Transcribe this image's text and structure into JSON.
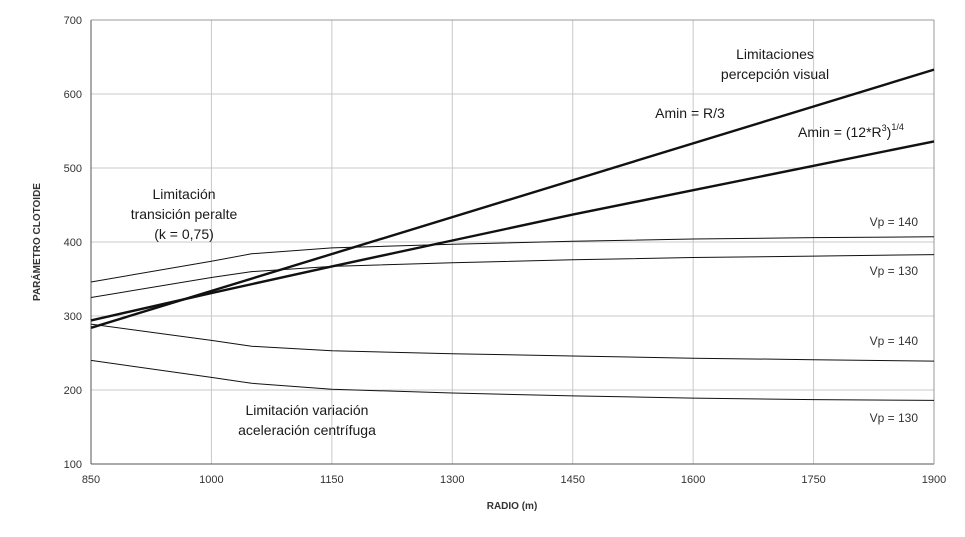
{
  "chart_data": {
    "type": "line",
    "xlabel": "RADIO (m)",
    "ylabel": "PARÁMETRO CLOTOIDE",
    "xlim": [
      850,
      1900
    ],
    "ylim": [
      100,
      700
    ],
    "xticks": [
      850,
      1000,
      1150,
      1300,
      1450,
      1600,
      1750,
      1900
    ],
    "yticks": [
      100,
      200,
      300,
      400,
      500,
      600,
      700
    ],
    "grid": true,
    "series": [
      {
        "name": "Amin = R/3",
        "stroke": "bold",
        "x": [
          850,
          1900
        ],
        "y": [
          284,
          633
        ]
      },
      {
        "name": "Amin = (12*R³)^1/4",
        "stroke": "bold",
        "x": [
          850,
          1000,
          1150,
          1300,
          1450,
          1600,
          1750,
          1900
        ],
        "y": [
          294,
          331,
          367,
          402,
          437,
          470,
          503,
          536
        ]
      },
      {
        "name": "Vp = 140",
        "stroke": "thin",
        "x": [
          850,
          1000,
          1050,
          1150,
          1300,
          1450,
          1600,
          1750,
          1900
        ],
        "y": [
          346,
          374,
          384,
          392,
          397,
          401,
          404,
          406,
          407
        ]
      },
      {
        "name": "Vp = 130",
        "stroke": "thin",
        "x": [
          850,
          1000,
          1050,
          1150,
          1300,
          1450,
          1600,
          1750,
          1900
        ],
        "y": [
          325,
          352,
          360,
          367,
          372,
          376,
          379,
          381,
          383
        ]
      },
      {
        "name": "Vp = 140",
        "stroke": "thin",
        "x": [
          850,
          1000,
          1050,
          1150,
          1300,
          1450,
          1600,
          1750,
          1900
        ],
        "y": [
          289,
          267,
          259,
          253,
          249,
          246,
          243,
          241,
          239
        ]
      },
      {
        "name": "Vp = 130",
        "stroke": "thin",
        "x": [
          850,
          1000,
          1050,
          1150,
          1300,
          1450,
          1600,
          1750,
          1900
        ],
        "y": [
          240,
          217,
          209,
          201,
          196,
          192,
          189,
          187,
          186
        ]
      }
    ],
    "annotations": {
      "perception_1": "Limitaciones",
      "perception_2": "percepción visual",
      "amin_r3": "Amin = R/3",
      "amin_formula": "Amin = (12*R³)^1/4",
      "peralte_1": "Limitación",
      "peralte_2": "transición peralte",
      "peralte_3": "(k = 0,75)",
      "centrifuga_1": "Limitación variación",
      "centrifuga_2": "aceleración centrífuga",
      "vp140_upper": "Vp = 140",
      "vp130_upper": "Vp = 130",
      "vp140_lower": "Vp = 140",
      "vp130_lower": "Vp = 130"
    }
  },
  "formula_parts": {
    "prefix": "Amin = (12*R",
    "exp3": "3",
    "close": ")",
    "exp14": "1/4"
  }
}
